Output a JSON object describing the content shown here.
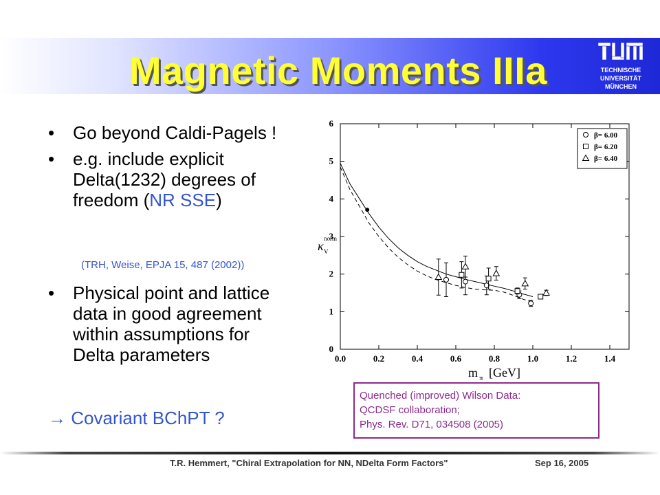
{
  "slide": {
    "title": "Magnetic Moments  IIIa",
    "logo_text": [
      "TECHNISCHE",
      "UNIVERSITÄT",
      "MÜNCHEN"
    ],
    "colors": {
      "title": "#ffff33",
      "accent": "#3355cc",
      "note": "#8b2a8b",
      "bar_dark": "#1e28d6"
    }
  },
  "bullets": {
    "b1": "Go beyond Caldi-Pagels !",
    "b2_pre": "e.g. include explicit Delta(1232) degrees of freedom (",
    "b2_blue": "NR SSE",
    "b2_post": ")",
    "citation": "(TRH, Weise, EPJA 15, 487 (2002))",
    "b3": "Physical point and lattice data in good agreement within assumptions for Delta parameters",
    "conclusion": "→ Covariant BChPT ?"
  },
  "note": {
    "line1": "Quenched (improved) Wilson Data:",
    "line2": "QCDSF collaboration;",
    "line3": "Phys. Rev. D71, 034508 (2005)"
  },
  "footer": {
    "author": "T.R. Hemmert, \"Chiral Extrapolation for NN, NDelta Form Factors\"",
    "date": "Sep 16, 2005"
  },
  "chart_data": {
    "type": "scatter",
    "xlabel": "m",
    "xlabel_sub": "π",
    "xlabel_unit": "[GeV]",
    "ylabel": "κ",
    "ylabel_sub": "V",
    "ylabel_sup": "norm",
    "xlim": [
      0.0,
      1.5
    ],
    "ylim": [
      0,
      6
    ],
    "x_ticks": [
      "0.0",
      "0.2",
      "0.4",
      "0.6",
      "0.8",
      "1.0",
      "1.2",
      "1.4"
    ],
    "x_tick_values": [
      0.0,
      0.2,
      0.4,
      0.6,
      0.8,
      1.0,
      1.2,
      1.4
    ],
    "y_ticks": [
      "0",
      "1",
      "2",
      "3",
      "4",
      "5",
      "6"
    ],
    "y_tick_values": [
      0,
      1,
      2,
      3,
      4,
      5,
      6
    ],
    "grid": false,
    "legend_position": "top-right",
    "physical_point": {
      "x": 0.14,
      "y": 3.71
    },
    "series": [
      {
        "name": "β= 6.00",
        "marker": "circle",
        "points": [
          {
            "x": 0.55,
            "y": 1.85,
            "err": 0.45
          },
          {
            "x": 0.65,
            "y": 1.8,
            "err": 0.35
          },
          {
            "x": 0.76,
            "y": 1.7,
            "err": 0.25
          },
          {
            "x": 0.93,
            "y": 1.45,
            "err": 0.1
          },
          {
            "x": 0.99,
            "y": 1.22,
            "err": 0.08
          }
        ]
      },
      {
        "name": "β= 6.20",
        "marker": "square",
        "points": [
          {
            "x": 0.63,
            "y": 1.98,
            "err": 0.35
          },
          {
            "x": 0.77,
            "y": 1.88,
            "err": 0.28
          },
          {
            "x": 0.92,
            "y": 1.55,
            "err": 0.08
          },
          {
            "x": 1.04,
            "y": 1.4,
            "err": 0.06
          }
        ]
      },
      {
        "name": "β= 6.40",
        "marker": "triangle",
        "points": [
          {
            "x": 0.51,
            "y": 1.92,
            "err": 0.48
          },
          {
            "x": 0.65,
            "y": 2.2,
            "err": 0.28
          },
          {
            "x": 0.81,
            "y": 2.02,
            "err": 0.18
          },
          {
            "x": 0.96,
            "y": 1.75,
            "err": 0.15
          },
          {
            "x": 1.07,
            "y": 1.5,
            "err": 0.07
          }
        ]
      }
    ],
    "curves": [
      {
        "name": "solid",
        "style": "solid",
        "x": [
          0.0,
          0.05,
          0.1,
          0.15,
          0.2,
          0.25,
          0.3,
          0.35,
          0.4,
          0.45,
          0.5,
          0.55,
          0.6,
          0.65,
          0.7,
          0.75,
          0.8,
          0.85,
          0.9,
          0.95,
          1.0
        ],
        "y": [
          4.95,
          4.4,
          4.0,
          3.6,
          3.25,
          2.95,
          2.7,
          2.5,
          2.33,
          2.2,
          2.1,
          2.0,
          1.93,
          1.86,
          1.8,
          1.74,
          1.68,
          1.62,
          1.55,
          1.47,
          1.4
        ]
      },
      {
        "name": "dashed",
        "style": "dashed",
        "x": [
          0.0,
          0.05,
          0.1,
          0.15,
          0.2,
          0.25,
          0.3,
          0.35,
          0.4,
          0.45,
          0.5,
          0.55,
          0.6,
          0.65,
          0.7,
          0.75,
          0.8,
          0.85,
          0.9,
          0.95,
          1.0
        ],
        "y": [
          4.85,
          4.25,
          3.8,
          3.35,
          3.0,
          2.7,
          2.45,
          2.25,
          2.08,
          1.95,
          1.85,
          1.77,
          1.7,
          1.64,
          1.6,
          1.58,
          1.57,
          1.52,
          1.43,
          1.33,
          1.25
        ]
      }
    ]
  }
}
